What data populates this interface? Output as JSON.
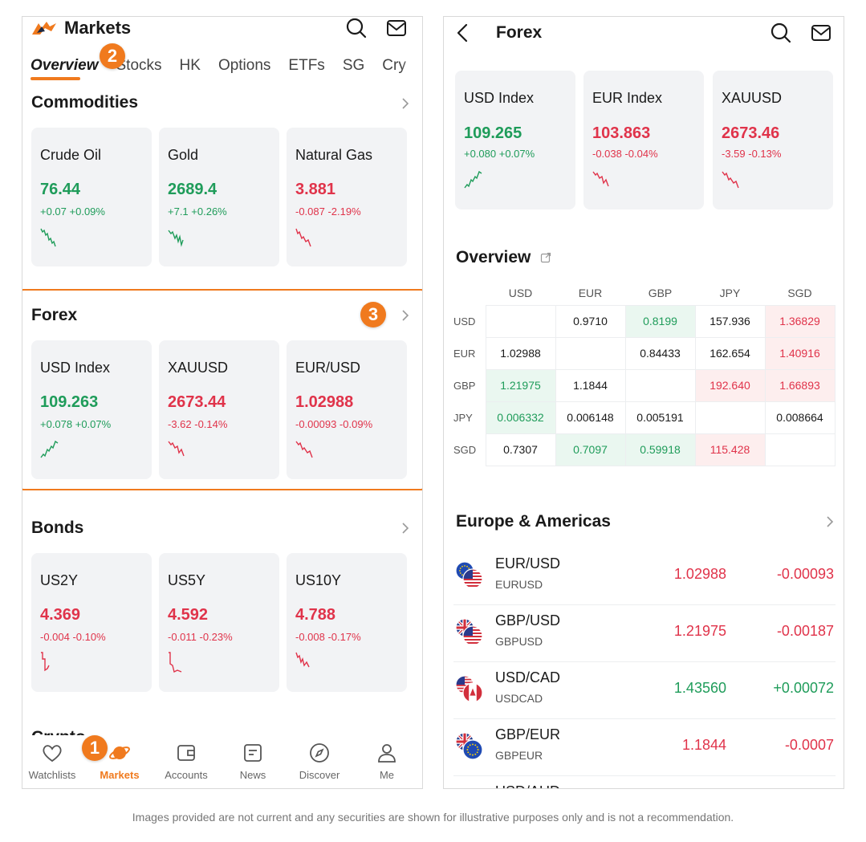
{
  "left": {
    "title": "Markets",
    "tabs": [
      "Overview",
      "Stocks",
      "HK",
      "Options",
      "ETFs",
      "SG",
      "Cry"
    ],
    "badges": [
      "1",
      "2",
      "3"
    ],
    "commodities": {
      "title": "Commodities",
      "cards": [
        {
          "name": "Crude Oil",
          "price": "76.44",
          "change": "+0.07 +0.09%",
          "dir": "up"
        },
        {
          "name": "Gold",
          "price": "2689.4",
          "change": "+7.1 +0.26%",
          "dir": "up"
        },
        {
          "name": "Natural Gas",
          "price": "3.881",
          "change": "-0.087 -2.19%",
          "dir": "down"
        }
      ]
    },
    "forex": {
      "title": "Forex",
      "cards": [
        {
          "name": "USD Index",
          "price": "109.263",
          "change": "+0.078 +0.07%",
          "dir": "up"
        },
        {
          "name": "XAUUSD",
          "price": "2673.44",
          "change": "-3.62 -0.14%",
          "dir": "down"
        },
        {
          "name": "EUR/USD",
          "price": "1.02988",
          "change": "-0.00093 -0.09%",
          "dir": "down"
        }
      ]
    },
    "bonds": {
      "title": "Bonds",
      "cards": [
        {
          "name": "US2Y",
          "price": "4.369",
          "change": "-0.004 -0.10%",
          "dir": "down"
        },
        {
          "name": "US5Y",
          "price": "4.592",
          "change": "-0.011 -0.23%",
          "dir": "down"
        },
        {
          "name": "US10Y",
          "price": "4.788",
          "change": "-0.008 -0.17%",
          "dir": "down"
        }
      ]
    },
    "crypto_peek": "Crypto",
    "nav": [
      "Watchlists",
      "Markets",
      "Accounts",
      "News",
      "Discover",
      "Me"
    ]
  },
  "right": {
    "title": "Forex",
    "top_cards": [
      {
        "name": "USD Index",
        "price": "109.265",
        "change": "+0.080 +0.07%",
        "dir": "up"
      },
      {
        "name": "EUR Index",
        "price": "103.863",
        "change": "-0.038 -0.04%",
        "dir": "down"
      },
      {
        "name": "XAUUSD",
        "price": "2673.46",
        "change": "-3.59 -0.13%",
        "dir": "down"
      }
    ],
    "overview": {
      "title": "Overview",
      "columns": [
        "USD",
        "EUR",
        "GBP",
        "JPY",
        "SGD"
      ],
      "rows": [
        {
          "label": "USD",
          "cells": [
            "",
            "0.9710",
            "0.8199",
            "157.936",
            "1.36829"
          ],
          "tones": [
            "blank",
            "",
            "g",
            "",
            "r"
          ]
        },
        {
          "label": "EUR",
          "cells": [
            "1.02988",
            "",
            "0.84433",
            "162.654",
            "1.40916"
          ],
          "tones": [
            "",
            "blank",
            "",
            "",
            "r"
          ]
        },
        {
          "label": "GBP",
          "cells": [
            "1.21975",
            "1.1844",
            "",
            "192.640",
            "1.66893"
          ],
          "tones": [
            "g",
            "",
            "blank",
            "r",
            "r"
          ]
        },
        {
          "label": "JPY",
          "cells": [
            "0.006332",
            "0.006148",
            "0.005191",
            "",
            "0.008664"
          ],
          "tones": [
            "g",
            "",
            "",
            "blank",
            ""
          ]
        },
        {
          "label": "SGD",
          "cells": [
            "0.7307",
            "0.7097",
            "0.59918",
            "115.428",
            ""
          ],
          "tones": [
            "",
            "g",
            "g",
            "r",
            "blank"
          ]
        }
      ]
    },
    "europe_americas": {
      "title": "Europe & Americas",
      "rows": [
        {
          "pair": "EUR/USD",
          "code": "EURUSD",
          "price": "1.02988",
          "change": "-0.00093",
          "dir": "down",
          "flags": [
            "eu",
            "us"
          ]
        },
        {
          "pair": "GBP/USD",
          "code": "GBPUSD",
          "price": "1.21975",
          "change": "-0.00187",
          "dir": "down",
          "flags": [
            "gb",
            "us"
          ]
        },
        {
          "pair": "USD/CAD",
          "code": "USDCAD",
          "price": "1.43560",
          "change": "+0.00072",
          "dir": "up",
          "flags": [
            "us",
            "ca"
          ]
        },
        {
          "pair": "GBP/EUR",
          "code": "GBPEUR",
          "price": "1.1844",
          "change": "-0.0007",
          "dir": "down",
          "flags": [
            "gb",
            "eu"
          ]
        },
        {
          "pair": "USD/AUD",
          "code": "",
          "price": "",
          "change": "",
          "dir": "down",
          "flags": [
            "us",
            "au"
          ]
        }
      ]
    }
  },
  "disclaimer": "Images provided are not current and any securities are shown for illustrative purposes only and is not a recommendation.",
  "colors": {
    "accent": "#f07a1e",
    "up": "#1f9c5a",
    "down": "#e0334a"
  }
}
